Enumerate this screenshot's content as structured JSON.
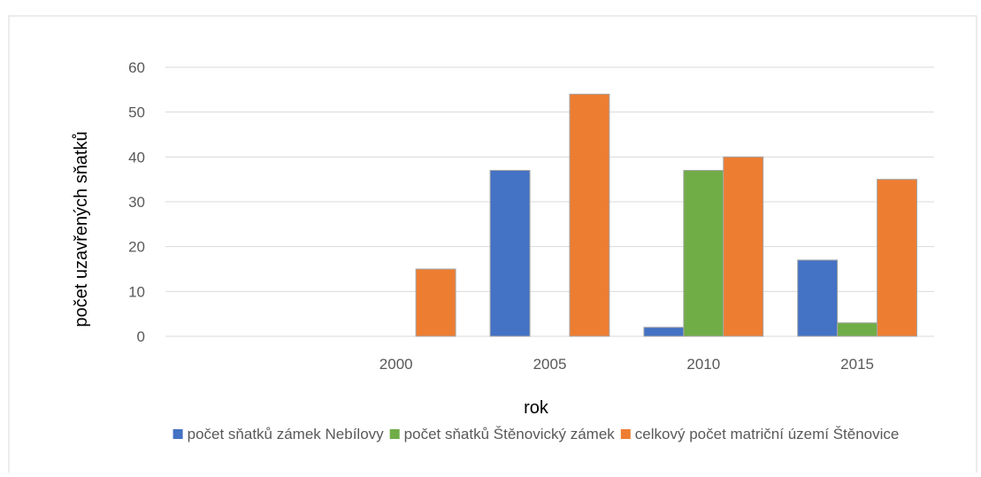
{
  "chart_data": {
    "type": "bar",
    "categories": [
      "",
      "2000",
      "2005",
      "2010",
      "2015"
    ],
    "series": [
      {
        "name": "počet sňatků zámek Nebílovy",
        "values": [
          0,
          0,
          37,
          2,
          17
        ],
        "color": "#4472C4"
      },
      {
        "name": "počet sňatků Štěnovický zámek",
        "values": [
          0,
          0,
          0,
          37,
          3
        ],
        "color": "#70AD47"
      },
      {
        "name": "celkový počet matriční území Štěnovice",
        "values": [
          0,
          15,
          54,
          40,
          35
        ],
        "color": "#ED7D31"
      }
    ],
    "yticks": [
      "0",
      "10",
      "20",
      "30",
      "40",
      "50",
      "60"
    ],
    "ylim": [
      0,
      60
    ],
    "xlabel": "rok",
    "ylabel": "počet uzavřených sňatků",
    "grid": true,
    "legend": "bottom"
  }
}
